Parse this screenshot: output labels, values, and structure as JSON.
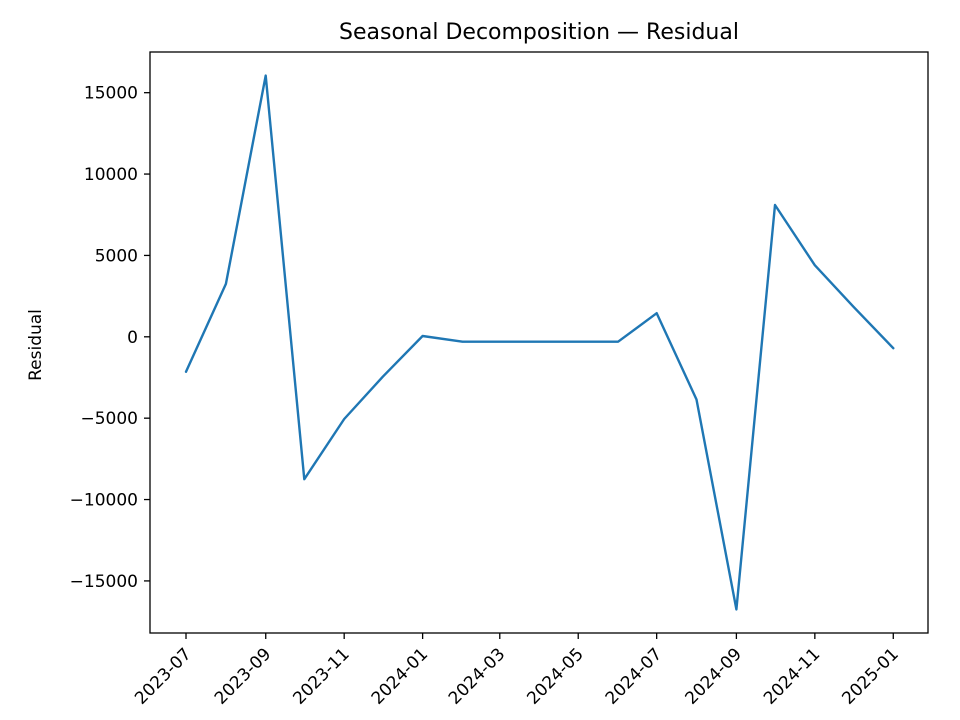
{
  "chart_data": {
    "type": "line",
    "title": "Seasonal Decomposition — Residual",
    "xlabel": "",
    "ylabel": "Residual",
    "x": [
      "2023-07",
      "2023-08",
      "2023-09",
      "2023-10",
      "2023-11",
      "2023-12",
      "2024-01",
      "2024-02",
      "2024-03",
      "2024-04",
      "2024-05",
      "2024-06",
      "2024-07",
      "2024-08",
      "2024-09",
      "2024-10",
      "2024-11",
      "2024-12",
      "2025-01"
    ],
    "series": [
      {
        "values": [
          -2150,
          3250,
          16050,
          -8750,
          -5050,
          -2450,
          50,
          -300,
          -300,
          -300,
          -300,
          -300,
          1450,
          -3850,
          -16750,
          8100,
          4400,
          1850,
          -700
        ],
        "color": "#1f77b4"
      }
    ],
    "xticks": [
      "2023-07",
      "2023-09",
      "2023-11",
      "2024-01",
      "2024-03",
      "2024-05",
      "2024-07",
      "2024-09",
      "2024-11",
      "2025-01"
    ],
    "yticks": [
      -15000,
      -10000,
      -5000,
      0,
      5000,
      10000,
      15000
    ],
    "xlim": [
      "2023-06-03",
      "2025-01-28"
    ],
    "ylim": [
      -18200,
      17500
    ],
    "grid": false,
    "legend": "none"
  }
}
